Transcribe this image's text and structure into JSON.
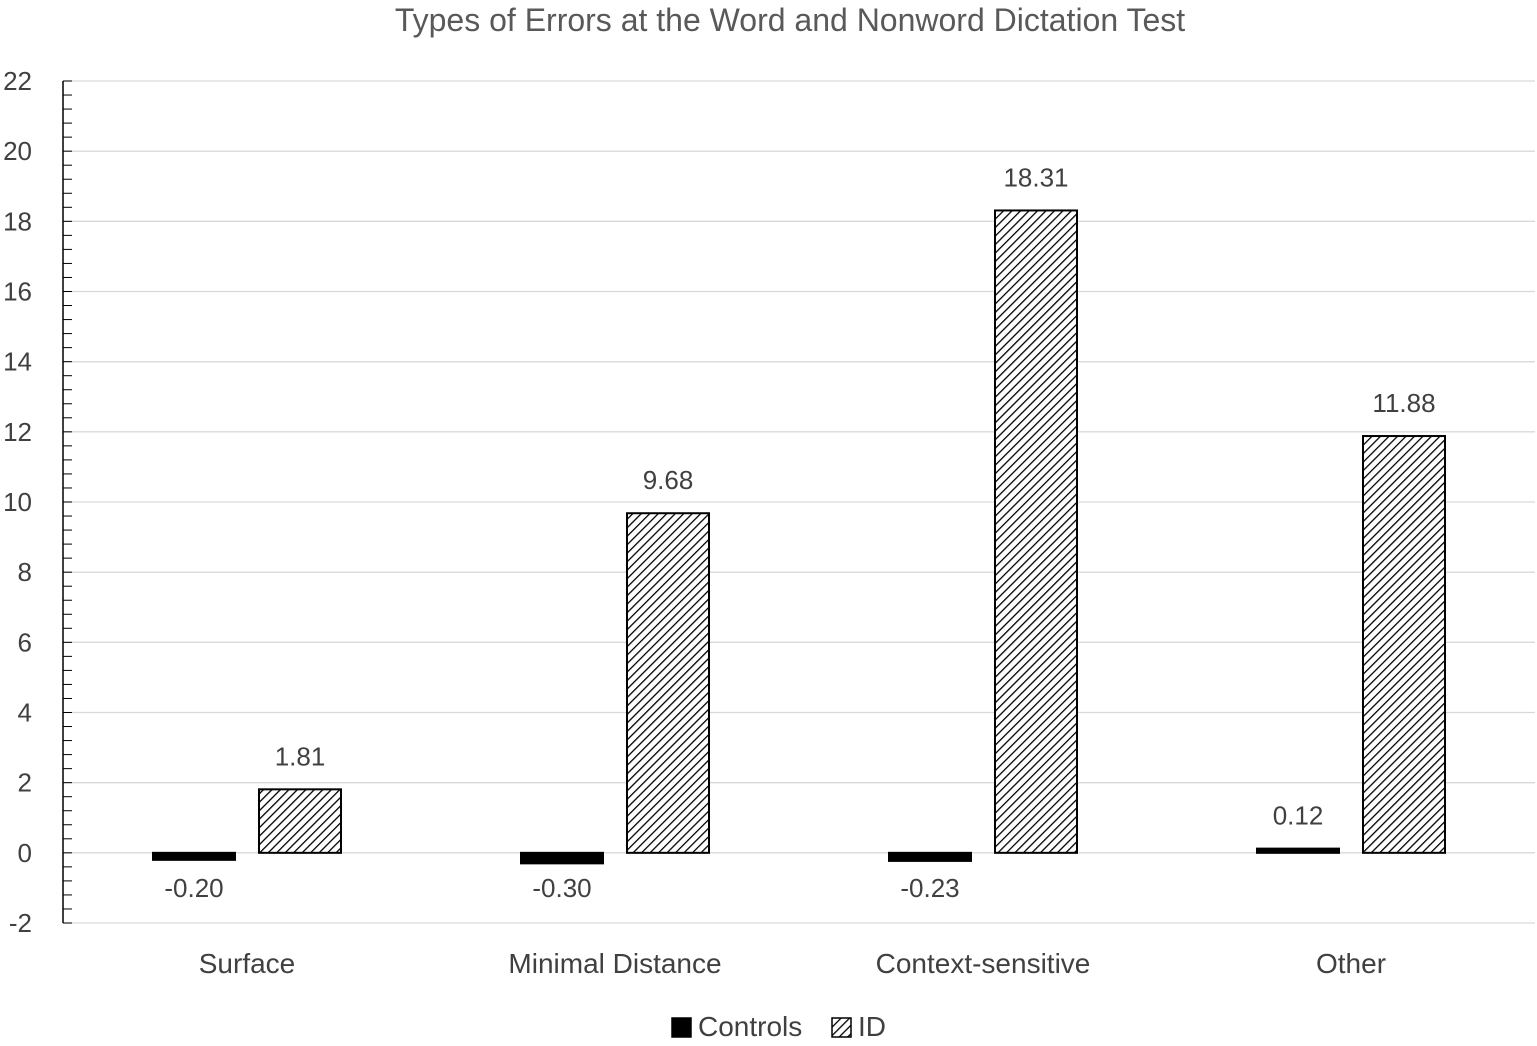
{
  "chart_data": {
    "type": "bar",
    "title": "Types of Errors at the Word and Nonword Dictation Test",
    "categories": [
      "Surface",
      "Minimal Distance",
      "Context-sensitive",
      "Other"
    ],
    "series": [
      {
        "name": "Controls",
        "values": [
          -0.2,
          -0.3,
          -0.23,
          0.12
        ],
        "labels": [
          "-0.20",
          "-0.30",
          "-0.23",
          "0.12"
        ],
        "fill": "#000000"
      },
      {
        "name": "ID",
        "values": [
          1.81,
          9.68,
          18.31,
          11.88
        ],
        "labels": [
          "1.81",
          "9.68",
          "18.31",
          "11.88"
        ],
        "fill": "hatch"
      }
    ],
    "xlabel": "",
    "ylabel": "",
    "ylim": [
      -2,
      22
    ],
    "yticks": [
      "-2",
      "0",
      "2",
      "4",
      "6",
      "8",
      "10",
      "12",
      "14",
      "16",
      "18",
      "20",
      "22"
    ],
    "grid": true,
    "legend_position": "bottom"
  }
}
